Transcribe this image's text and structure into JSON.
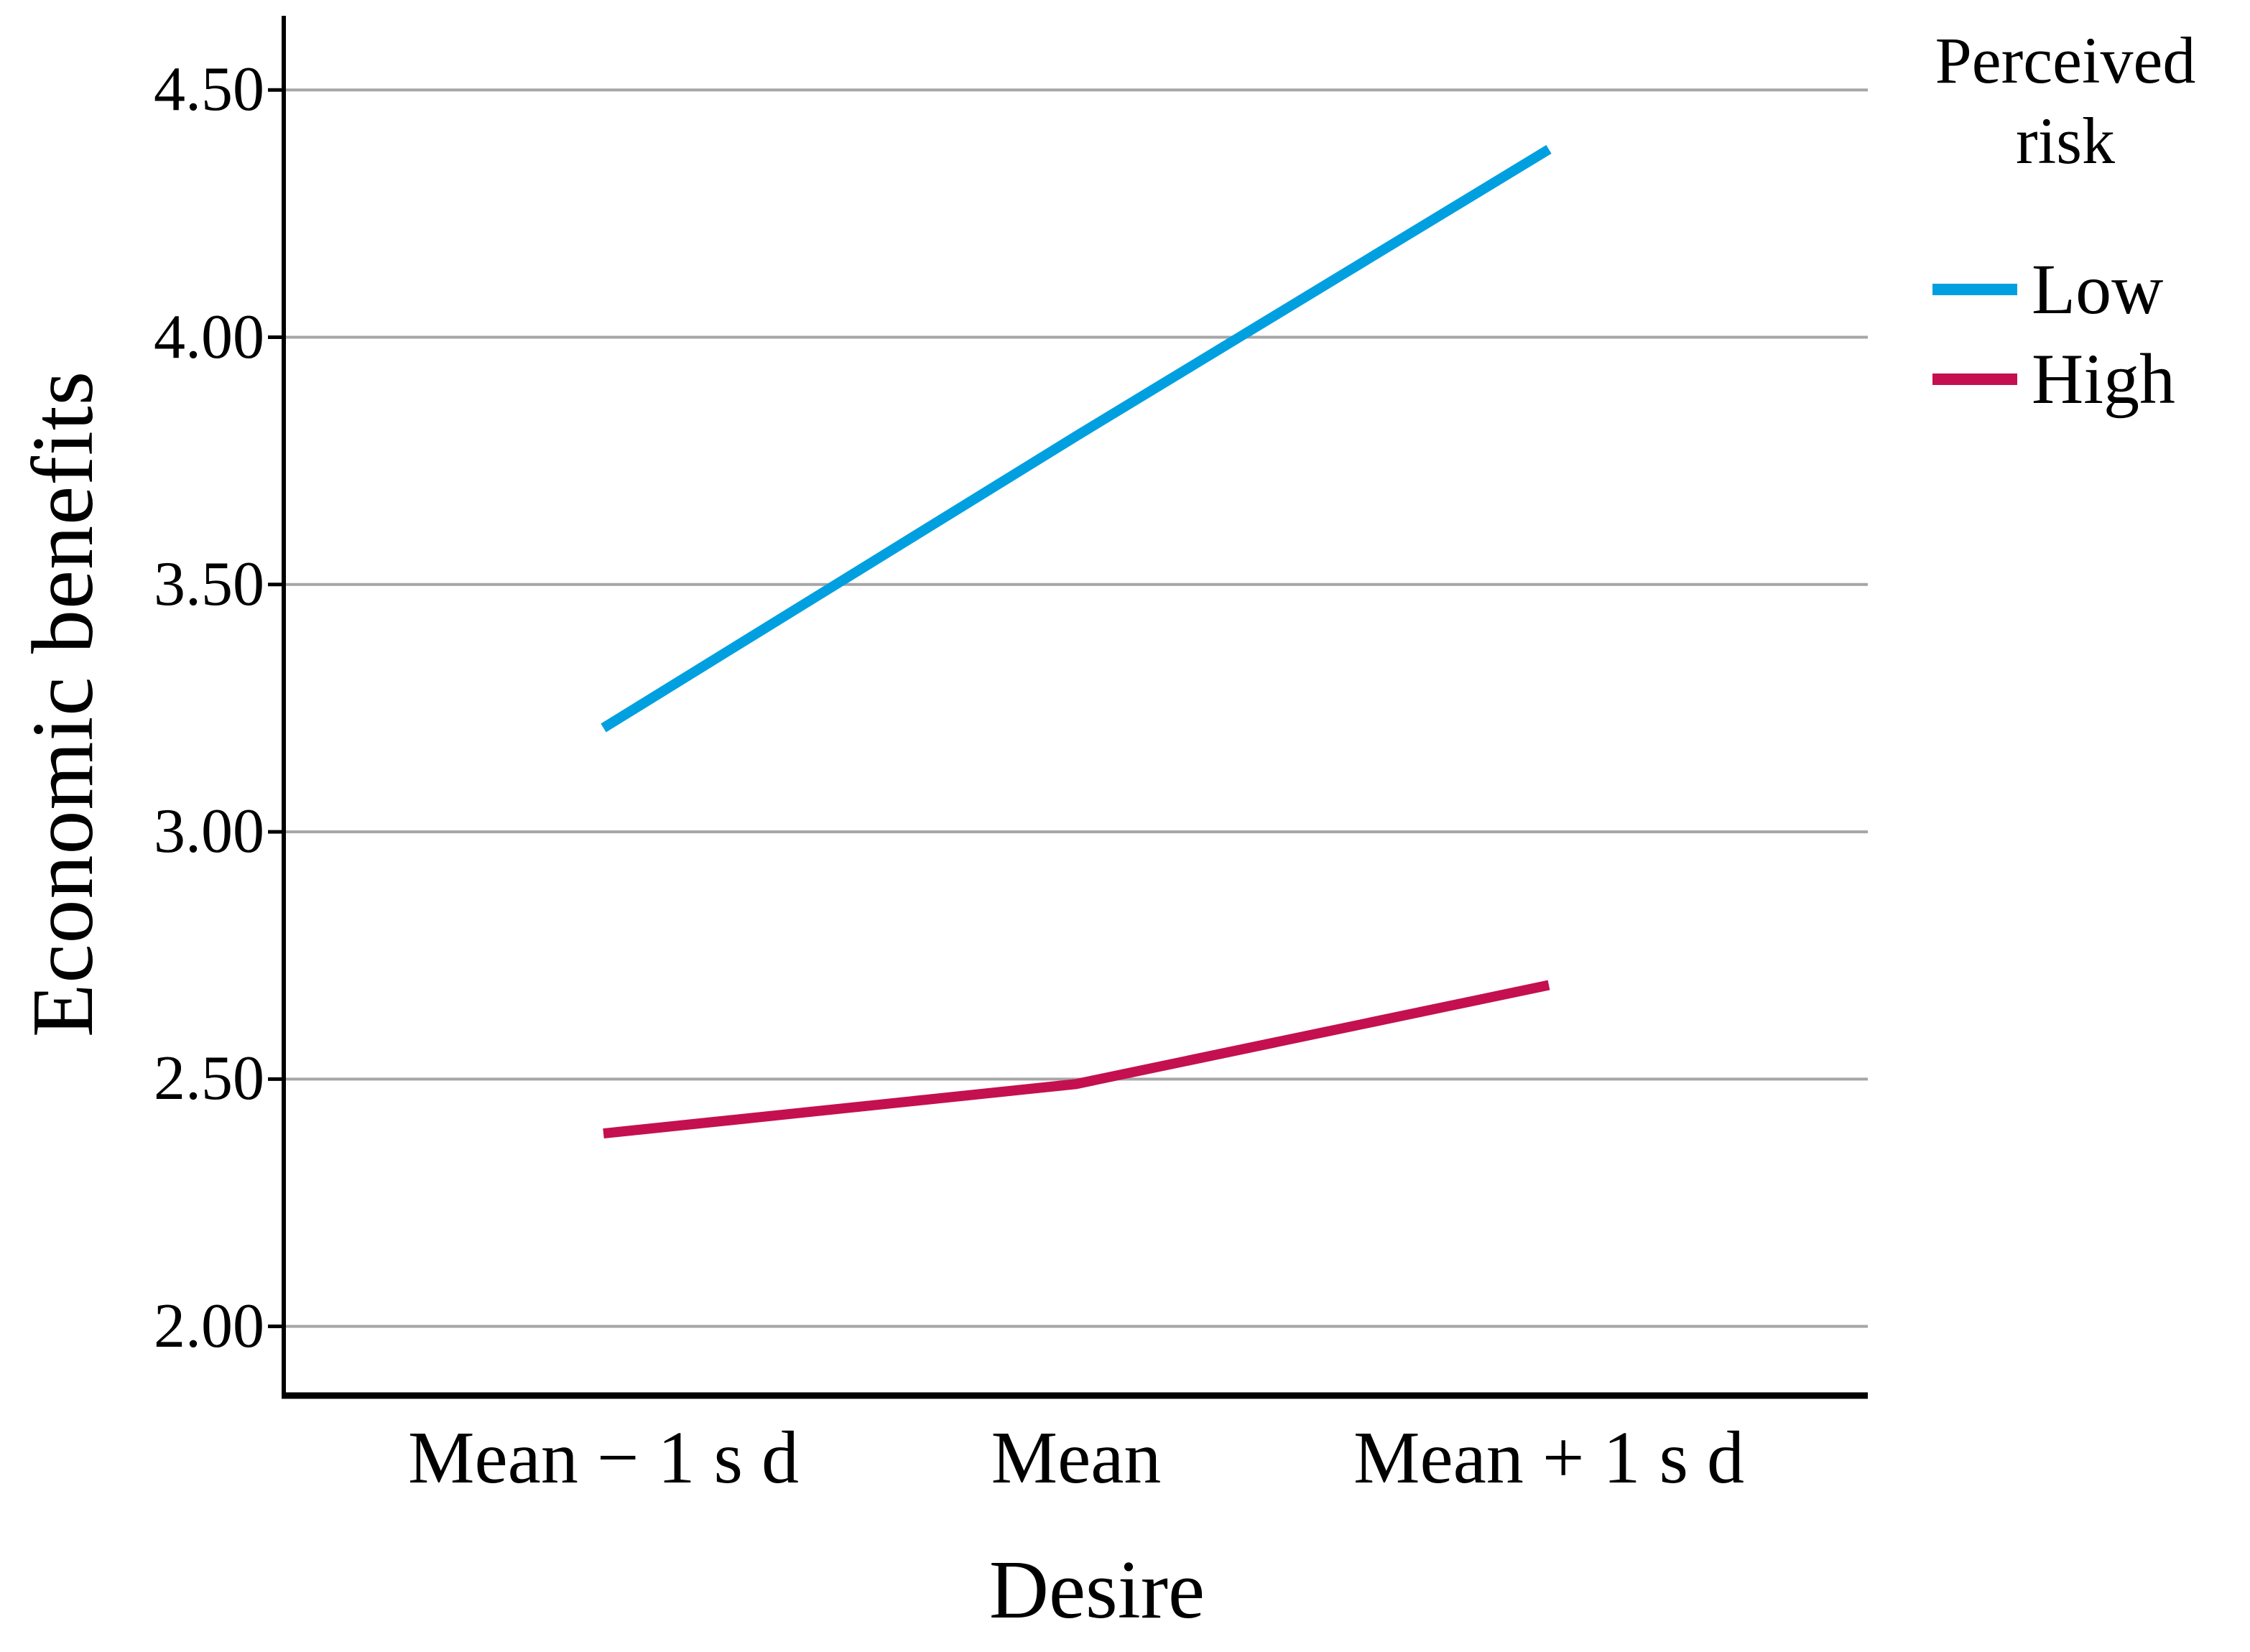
{
  "chart_data": {
    "type": "line",
    "title": "",
    "xlabel": "Desire",
    "ylabel": "Economic benefits",
    "categories": [
      "Mean − 1 s d",
      "Mean",
      "Mean + 1 s d"
    ],
    "series": [
      {
        "name": "Low",
        "color": "#00A0E0",
        "values": [
          3.21,
          3.8,
          4.38
        ]
      },
      {
        "name": "High",
        "color": "#C4104F",
        "values": [
          2.39,
          2.49,
          2.69
        ]
      }
    ],
    "y_ticks": [
      {
        "value": 4.5,
        "label": "4.50"
      },
      {
        "value": 4.0,
        "label": "4.00"
      },
      {
        "value": 3.5,
        "label": "3.50"
      },
      {
        "value": 3.0,
        "label": "3.00"
      },
      {
        "value": 2.5,
        "label": "2.50"
      },
      {
        "value": 2.0,
        "label": "2.00"
      }
    ],
    "ylim": [
      1.86,
      4.65
    ],
    "grid": true,
    "grid_color": "#A6A6A6",
    "axis_color": "#000000",
    "text_color": "#000000",
    "legend": {
      "title": "Perceived risk",
      "position": "top-right"
    }
  }
}
